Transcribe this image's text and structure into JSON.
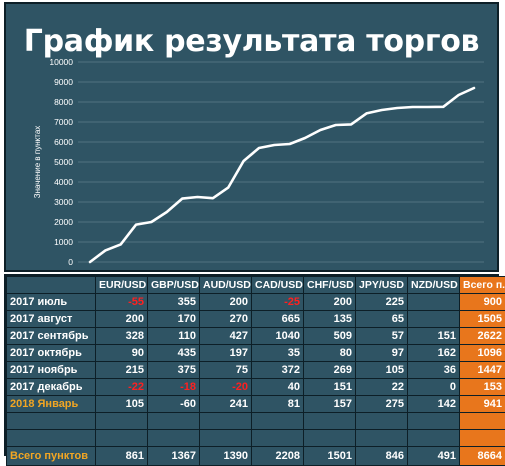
{
  "chart_data": {
    "type": "line",
    "title": "График результата торгов",
    "ylabel": "Значение в пунктах",
    "xlabel": "",
    "ylim": [
      0,
      10000
    ],
    "yticks": [
      "0",
      "1000",
      "2000",
      "3000",
      "4000",
      "5000",
      "6000",
      "7000",
      "8000",
      "9000",
      "10000"
    ],
    "grid": true,
    "legend": "none",
    "line_color": "#ffffff",
    "values": [
      0,
      580,
      880,
      1870,
      2000,
      2500,
      3170,
      3250,
      3190,
      3720,
      5050,
      5700,
      5850,
      5900,
      6200,
      6600,
      6850,
      6880,
      7430,
      7600,
      7700,
      7750,
      7750,
      7760,
      8350,
      8700
    ]
  },
  "table": {
    "headers": [
      "",
      "EUR/USD",
      "GBP/USD",
      "AUD/USD",
      "CAD/USD",
      "CHF/USD",
      "JPY/USD",
      "NZD/USD",
      "Всего п.п."
    ],
    "rows": [
      {
        "label": "2017 июль",
        "cells": [
          "-55",
          "355",
          "200",
          "-25",
          "200",
          "225",
          "",
          "900"
        ]
      },
      {
        "label": "2017 август",
        "cells": [
          "200",
          "170",
          "270",
          "665",
          "135",
          "65",
          "",
          "1505"
        ]
      },
      {
        "label": "2017 сентябрь",
        "cells": [
          "328",
          "110",
          "427",
          "1040",
          "509",
          "57",
          "151",
          "2622"
        ]
      },
      {
        "label": "2017 октябрь",
        "cells": [
          "90",
          "435",
          "197",
          "35",
          "80",
          "97",
          "162",
          "1096"
        ]
      },
      {
        "label": "2017 ноябрь",
        "cells": [
          "215",
          "375",
          "75",
          "372",
          "269",
          "105",
          "36",
          "1447"
        ]
      },
      {
        "label": "2017 декабрь",
        "cells": [
          "-22",
          "-18",
          "-20",
          "40",
          "151",
          "22",
          "0",
          "153"
        ]
      },
      {
        "label": "2018 Январь",
        "cells": [
          "105",
          "-60",
          "241",
          "81",
          "157",
          "275",
          "142",
          "941"
        ]
      }
    ],
    "total": {
      "label": "Всего пунктов",
      "cells": [
        "861",
        "1367",
        "1390",
        "2208",
        "1501",
        "846",
        "491",
        "8664"
      ]
    }
  },
  "colors": {
    "panel": "#2f5464",
    "border": "#0d1f27",
    "total_column": "#e8761c",
    "negative": "#ff2020",
    "highlight_label": "#f2a623"
  }
}
